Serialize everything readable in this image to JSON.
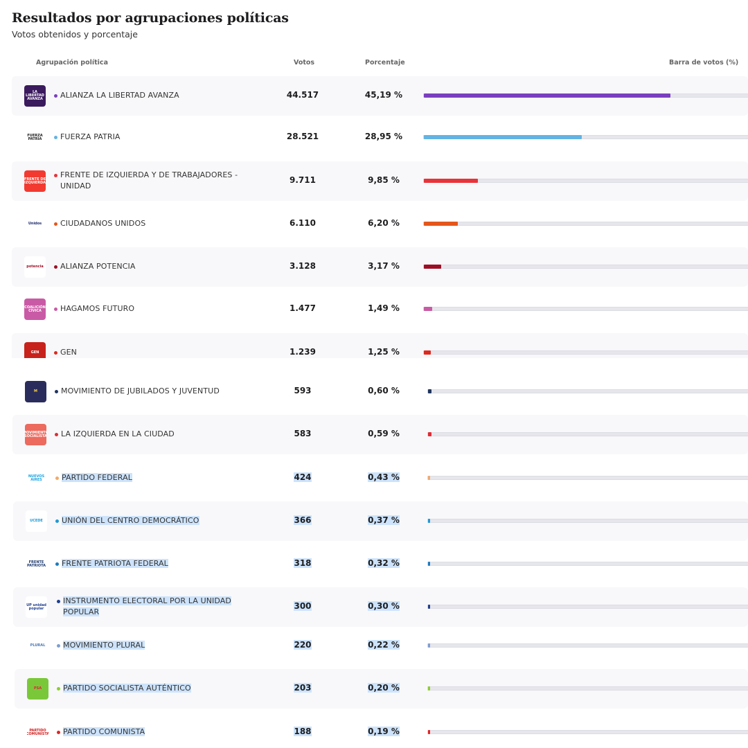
{
  "header": {
    "title": "Resultados por agrupaciones políticas",
    "subtitle": "Votos obtenidos y porcentaje"
  },
  "columns": {
    "party": "Agrupación política",
    "votes": "Votos",
    "percent": "Porcentaje",
    "bar": "Barra de votos (%)"
  },
  "rows": [
    {
      "name": "ALIANZA LA LIBERTAD AVANZA",
      "votes": "44.517",
      "percent": "45,19 %",
      "pct_value": 45.19,
      "color": "#7a3fbf",
      "logo_bg": "#3b1a5e",
      "logo_text": "LA LIBERTAD AVANZA",
      "logo_fg": "#ffffff",
      "icon": "libertad-avanza-logo-icon"
    },
    {
      "name": "FUERZA PATRIA",
      "votes": "28.521",
      "percent": "28,95 %",
      "pct_value": 28.95,
      "color": "#63b3e3",
      "logo_bg": "#ffffff",
      "logo_text": "FUERZA PATRIA",
      "logo_fg": "#1d1d1f",
      "icon": "fuerza-patria-logo-icon"
    },
    {
      "name": "FRENTE DE IZQUIERDA Y DE TRABAJADORES - UNIDAD",
      "votes": "9.711",
      "percent": "9,85 %",
      "pct_value": 9.85,
      "color": "#e8333a",
      "logo_bg": "#f23a30",
      "logo_text": "FRENTE DE IZQUIERDA",
      "logo_fg": "#ffffff",
      "icon": "frente-izquierda-logo-icon"
    },
    {
      "name": "CIUDADANOS UNIDOS",
      "votes": "6.110",
      "percent": "6,20 %",
      "pct_value": 6.2,
      "color": "#e4561b",
      "logo_bg": "#ffffff",
      "logo_text": "Unidos",
      "logo_fg": "#1d2a6b",
      "icon": "ciudadanos-unidos-logo-icon"
    },
    {
      "name": "ALIANZA POTENCIA",
      "votes": "3.128",
      "percent": "3,17 %",
      "pct_value": 3.17,
      "color": "#9c0f25",
      "logo_bg": "#ffffff",
      "logo_text": "potencia",
      "logo_fg": "#9c0f25",
      "icon": "potencia-logo-icon"
    },
    {
      "name": "HAGAMOS FUTURO",
      "votes": "1.477",
      "percent": "1,49 %",
      "pct_value": 1.49,
      "color": "#c95aa5",
      "logo_bg": "#c95aa5",
      "logo_text": "COALICIÓN CÍVICA",
      "logo_fg": "#ffffff",
      "icon": "hagamos-futuro-logo-icon"
    },
    {
      "name": "GEN",
      "votes": "1.239",
      "percent": "1,25 %",
      "pct_value": 1.25,
      "color": "#dc2a20",
      "logo_bg": "#c8221c",
      "logo_text": "GEN",
      "logo_fg": "#ffffff",
      "icon": "gen-logo-icon"
    },
    {
      "name": "MOVIMIENTO DE JUBILADOS Y JUVENTUD",
      "votes": "593",
      "percent": "0,60 %",
      "pct_value": 0.6,
      "color": "#1f355e",
      "logo_bg": "#2a2d5c",
      "logo_text": "M",
      "logo_fg": "#ffd23f",
      "icon": "movimiento-jubilados-logo-icon"
    },
    {
      "name": "LA IZQUIERDA EN LA CIUDAD",
      "votes": "583",
      "percent": "0,59 %",
      "pct_value": 0.59,
      "color": "#e02b33",
      "logo_bg": "#ec6a5e",
      "logo_text": "MOVIMIENTO SOCIALISTA",
      "logo_fg": "#ffffff",
      "icon": "izquierda-ciudad-logo-icon"
    },
    {
      "name": "PARTIDO FEDERAL",
      "votes": "424",
      "percent": "0,43 %",
      "pct_value": 0.43,
      "color": "#f2a96a",
      "logo_bg": "#ffffff",
      "logo_text": "NUEVOS AIRES",
      "logo_fg": "#1aa3e0",
      "icon": "nuevos-aires-logo-icon",
      "selected": true
    },
    {
      "name": "UNIÓN DEL CENTRO DEMOCRÁTICO",
      "votes": "366",
      "percent": "0,37 %",
      "pct_value": 0.37,
      "color": "#1d9ad6",
      "logo_bg": "#ffffff",
      "logo_text": "UCEDE",
      "logo_fg": "#1d9ad6",
      "icon": "ucede-logo-icon",
      "selected": true
    },
    {
      "name": "FRENTE PATRIOTA FEDERAL",
      "votes": "318",
      "percent": "0,32 %",
      "pct_value": 0.32,
      "color": "#1c7bbf",
      "logo_bg": "#ffffff",
      "logo_text": "FRENTE PATRIOTA",
      "logo_fg": "#1d3a6e",
      "icon": "frente-patriota-logo-icon",
      "selected": true
    },
    {
      "name": "INSTRUMENTO ELECTORAL POR LA UNIDAD POPULAR",
      "votes": "300",
      "percent": "0,30 %",
      "pct_value": 0.3,
      "color": "#1f3f8f",
      "logo_bg": "#ffffff",
      "logo_text": "UP unidad popular",
      "logo_fg": "#1f3f8f",
      "icon": "unidad-popular-logo-icon",
      "selected": true
    },
    {
      "name": "MOVIMIENTO PLURAL",
      "votes": "220",
      "percent": "0,22 %",
      "pct_value": 0.22,
      "color": "#7e9ed0",
      "logo_bg": "#ffffff",
      "logo_text": "PLURAL",
      "logo_fg": "#4a78b8",
      "icon": "movimiento-plural-logo-icon",
      "selected": true
    },
    {
      "name": "PARTIDO SOCIALISTA AUTÉNTICO",
      "votes": "203",
      "percent": "0,20 %",
      "pct_value": 0.2,
      "color": "#8ccf2a",
      "logo_bg": "#7ac83a",
      "logo_text": "PSA",
      "logo_fg": "#e0233a",
      "icon": "socialista-autentico-logo-icon",
      "selected": true
    },
    {
      "name": "PARTIDO COMUNISTA",
      "votes": "188",
      "percent": "0,19 %",
      "pct_value": 0.19,
      "color": "#e52222",
      "logo_bg": "#ffffff",
      "logo_text": "PARTIDO COMUNISTA",
      "logo_fg": "#d21d1d",
      "icon": "partido-comunista-logo-icon",
      "selected": true
    }
  ]
}
